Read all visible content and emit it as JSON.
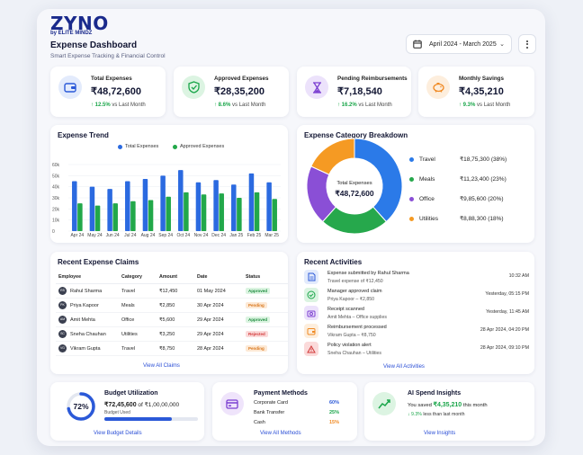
{
  "brand": {
    "name": "ZYNO",
    "tagline": "by ELITE MINDZ"
  },
  "header": {
    "title": "Expense Dashboard",
    "subtitle": "Smart Expense Tracking & Financial Control",
    "date_range": "April 2024 - March 2025"
  },
  "kpis": [
    {
      "label": "Total Expenses",
      "value": "₹48,72,600",
      "change": "12.5%",
      "suffix": "vs Last Month",
      "icon": "wallet-icon",
      "color": "#2b59d8",
      "bg": "#e3ebfc"
    },
    {
      "label": "Approved Expenses",
      "value": "₹28,35,200",
      "change": "8.6%",
      "suffix": "vs Last Month",
      "icon": "shield-check-icon",
      "color": "#1aa64a",
      "bg": "#dcf4e2"
    },
    {
      "label": "Pending Reimbursements",
      "value": "₹7,18,540",
      "change": "16.2%",
      "suffix": "vs Last Month",
      "icon": "hourglass-icon",
      "color": "#7b3fd1",
      "bg": "#ece2fb"
    },
    {
      "label": "Monthly Savings",
      "value": "₹4,35,210",
      "change": "9.3%",
      "suffix": "vs Last Month",
      "icon": "piggy-bank-icon",
      "color": "#f08a24",
      "bg": "#fdeedd"
    }
  ],
  "trend": {
    "title": "Expense Trend",
    "legend": [
      "Total Expenses",
      "Approved Expenses"
    ]
  },
  "chart_data": [
    {
      "type": "bar",
      "title": "Expense Trend",
      "categories": [
        "Apr 24",
        "May 24",
        "Jun 24",
        "Jul 24",
        "Aug 24",
        "Sep 24",
        "Oct 24",
        "Nov 24",
        "Dec 24",
        "Jan 25",
        "Feb 25",
        "Mar 25"
      ],
      "series": [
        {
          "name": "Total Expenses",
          "color": "#2b6ae0",
          "values": [
            45000,
            40000,
            38000,
            45000,
            47000,
            50000,
            55000,
            44000,
            46000,
            42000,
            52000,
            44000
          ]
        },
        {
          "name": "Approved Expenses",
          "color": "#22a84a",
          "values": [
            25000,
            23000,
            25000,
            27000,
            28000,
            31000,
            35000,
            33000,
            34000,
            30000,
            35000,
            29000
          ]
        }
      ],
      "yticks": [
        "0",
        "10k",
        "20k",
        "30k",
        "40k",
        "50k",
        "60k"
      ],
      "ylim": [
        0,
        60000
      ],
      "legend_position": "top"
    },
    {
      "type": "pie",
      "title": "Expense Category Breakdown",
      "center_label": "Total Expenses",
      "center_value": "₹48,72,600",
      "categories": [
        "Travel",
        "Meals",
        "Office",
        "Utilities"
      ],
      "amounts": [
        "₹18,75,300",
        "₹11,23,400",
        "₹9,85,600",
        "₹8,88,300"
      ],
      "percent_labels": [
        "(38%)",
        "(23%)",
        "(20%)",
        "(18%)"
      ],
      "values": [
        38,
        23,
        20,
        18
      ],
      "colors": [
        "#2b7ae8",
        "#26a84c",
        "#8a4fd6",
        "#f59a23"
      ]
    }
  ],
  "claims": {
    "title": "Recent Expense Claims",
    "columns": [
      "Employee",
      "Category",
      "Amount",
      "Date",
      "Status"
    ],
    "rows": [
      {
        "initials": "RS",
        "name": "Rahul Sharma",
        "category": "Travel",
        "amount": "₹12,450",
        "date": "01 May 2024",
        "status": "Approved",
        "cls": "b-approved"
      },
      {
        "initials": "PK",
        "name": "Priya Kapoor",
        "category": "Meals",
        "amount": "₹2,850",
        "date": "30 Apr 2024",
        "status": "Pending",
        "cls": "b-pending"
      },
      {
        "initials": "AM",
        "name": "Amit Mehta",
        "category": "Office",
        "amount": "₹5,600",
        "date": "29 Apr 2024",
        "status": "Approved",
        "cls": "b-approved"
      },
      {
        "initials": "SC",
        "name": "Sneha Chauhan",
        "category": "Utilities",
        "amount": "₹3,250",
        "date": "29 Apr 2024",
        "status": "Rejected",
        "cls": "b-rejected"
      },
      {
        "initials": "VG",
        "name": "Vikram Gupta",
        "category": "Travel",
        "amount": "₹8,750",
        "date": "28 Apr 2024",
        "status": "Pending",
        "cls": "b-pending"
      }
    ],
    "link": "View All Claims"
  },
  "activities": {
    "title": "Recent Activities",
    "items": [
      {
        "title": "Expense submitted by Rahul Sharma",
        "sub": "Travel expense of ₹12,450",
        "time": "10:32 AM",
        "icon": "document-icon",
        "color": "#2b59d8",
        "bg": "#e3ebfc"
      },
      {
        "title": "Manager approved claim",
        "sub": "Priya Kapoor – ₹2,850",
        "time": "Yesterday, 05:15 PM",
        "icon": "check-circle-icon",
        "color": "#1aa64a",
        "bg": "#dcf4e2"
      },
      {
        "title": "Receipt scanned",
        "sub": "Amit Mehta – Office supplies",
        "time": "Yesterday, 11:45 AM",
        "icon": "camera-icon",
        "color": "#7b3fd1",
        "bg": "#ece2fb"
      },
      {
        "title": "Reimbursement processed",
        "sub": "Vikram Gupta – ₹8,750",
        "time": "28 Apr 2024, 04:20 PM",
        "icon": "wallet-icon",
        "color": "#f08a24",
        "bg": "#fdeedd"
      },
      {
        "title": "Policy violation alert",
        "sub": "Sneha Chauhan – Utilities",
        "time": "28 Apr 2024, 09:10 PM",
        "icon": "warning-icon",
        "color": "#d23a3a",
        "bg": "#fbdada"
      }
    ],
    "link": "View All Activities"
  },
  "budget": {
    "title": "Budget Utilization",
    "percent": "72%",
    "fraction": 0.72,
    "used": "₹72,45,600",
    "total": "of ₹1,00,00,000",
    "sub": "Budget Used",
    "link": "View Budget Details"
  },
  "payment": {
    "title": "Payment Methods",
    "rows": [
      {
        "name": "Corporate Card",
        "pct": "60%",
        "color": "#2b59d8"
      },
      {
        "name": "Bank Transfer",
        "pct": "25%",
        "color": "#1aa64a"
      },
      {
        "name": "Cash",
        "pct": "15%",
        "color": "#f08a24"
      }
    ],
    "link": "View All Methods"
  },
  "ai": {
    "title": "AI Spend Insights",
    "prefix": "You saved",
    "amount": "₹4,35,210",
    "suffix": "this month",
    "change": "9.3%",
    "change_suffix": "less than last month",
    "link": "View Insights"
  }
}
